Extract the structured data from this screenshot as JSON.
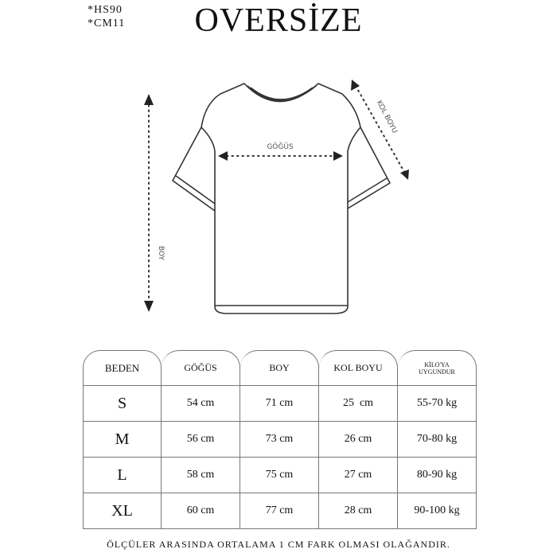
{
  "codes": [
    "*HS90",
    "*CM11"
  ],
  "title": "OVERSİZE",
  "diagram": {
    "chest_label": "GÖĞÜS",
    "length_label": "BOY",
    "sleeve_label": "KOL BOYU"
  },
  "table": {
    "headers": [
      "BEDEN",
      "GÖĞÜS",
      "BOY",
      "KOL BOYU",
      "KİLO'YA UYGUNDUR"
    ],
    "rows": [
      [
        "S",
        "54 cm",
        "71 cm",
        "25  cm",
        "55-70 kg"
      ],
      [
        "M",
        "56 cm",
        "73 cm",
        "26 cm",
        "70-80 kg"
      ],
      [
        "L",
        "58 cm",
        "75 cm",
        "27 cm",
        "80-90 kg"
      ],
      [
        "XL",
        "60 cm",
        "77 cm",
        "28 cm",
        "90-100 kg"
      ]
    ]
  },
  "footer": "ÖLÇÜLER ARASINDA ORTALAMA 1 CM FARK OLMASI OLAĞANDIR."
}
